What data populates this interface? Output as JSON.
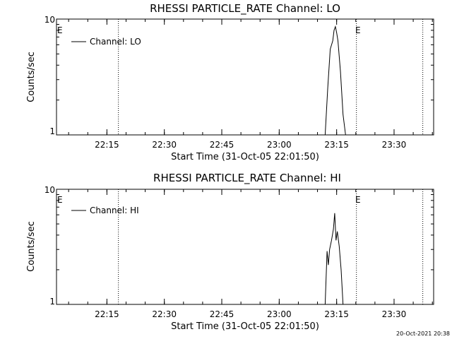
{
  "chart_data": [
    {
      "type": "line",
      "title": "RHESSI PARTICLE_RATE Channel: LO",
      "xlabel": "Start Time (31-Oct-05 22:01:50)",
      "ylabel": "Counts/sec",
      "yscale": "log",
      "ylim": [
        1,
        10
      ],
      "yticks": [
        "10",
        "1"
      ],
      "xlim_minutes": [
        0,
        37.5
      ],
      "xtick_labels": [
        "22:15",
        "22:30",
        "22:45",
        "23:00",
        "23:15",
        "23:30"
      ],
      "legend": {
        "position": "top-left",
        "label": "Channel: LO"
      },
      "markers": [
        "E",
        "E"
      ],
      "series": [
        {
          "name": "Channel: LO",
          "x": [
            "23:12:00",
            "23:12:40",
            "23:13:20",
            "23:14:00",
            "23:14:20",
            "23:14:40",
            "23:15:00",
            "23:15:20",
            "23:16:00",
            "23:16:40",
            "23:17:20"
          ],
          "y": [
            1,
            2.5,
            5.5,
            6.5,
            8.0,
            8.6,
            7.6,
            6.5,
            3.5,
            1.5,
            1
          ]
        }
      ]
    },
    {
      "type": "line",
      "title": "RHESSI PARTICLE_RATE Channel: HI",
      "xlabel": "Start Time (31-Oct-05 22:01:50)",
      "ylabel": "Counts/sec",
      "yscale": "log",
      "ylim": [
        1,
        10
      ],
      "yticks": [
        "10",
        "1"
      ],
      "xlim_minutes": [
        0,
        37.5
      ],
      "xtick_labels": [
        "22:15",
        "22:30",
        "22:45",
        "23:00",
        "23:15",
        "23:30"
      ],
      "legend": {
        "position": "top-left",
        "label": "Channel: HI"
      },
      "markers": [
        "E",
        "E"
      ],
      "series": [
        {
          "name": "Channel: HI",
          "x": [
            "23:12:00",
            "23:12:30",
            "23:12:50",
            "23:13:10",
            "23:13:40",
            "23:14:10",
            "23:14:30",
            "23:14:50",
            "23:15:10",
            "23:15:40",
            "23:16:10",
            "23:16:40"
          ],
          "y": [
            1,
            2.9,
            2.2,
            3.0,
            3.6,
            4.5,
            6.2,
            3.6,
            4.3,
            3.2,
            2.0,
            1
          ]
        }
      ]
    }
  ],
  "footer": {
    "timestamp": "20-Oct-2021 20:38"
  }
}
